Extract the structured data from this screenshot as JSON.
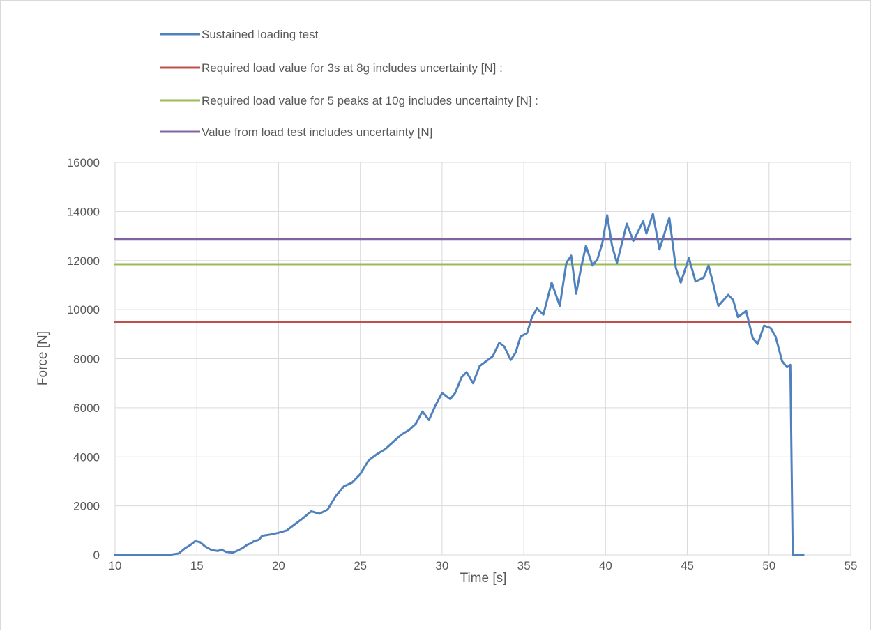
{
  "chart_data": {
    "type": "line",
    "title": "",
    "xlabel": "Time [s]",
    "ylabel": "Force [N]",
    "xlim": [
      10,
      55
    ],
    "ylim": [
      0,
      16000
    ],
    "x_ticks": [
      10,
      15,
      20,
      25,
      30,
      35,
      40,
      45,
      50,
      55
    ],
    "y_ticks": [
      0,
      2000,
      4000,
      6000,
      8000,
      10000,
      12000,
      14000,
      16000
    ],
    "grid": true,
    "legend_position": "top",
    "series": [
      {
        "name": "Sustained loading test",
        "color": "#4f81bd",
        "points": [
          [
            10,
            0
          ],
          [
            11,
            0
          ],
          [
            12,
            0
          ],
          [
            13.3,
            0
          ],
          [
            13.9,
            60
          ],
          [
            14.3,
            280
          ],
          [
            14.6,
            400
          ],
          [
            14.9,
            560
          ],
          [
            15.2,
            520
          ],
          [
            15.5,
            350
          ],
          [
            15.9,
            200
          ],
          [
            16.3,
            160
          ],
          [
            16.5,
            220
          ],
          [
            16.8,
            120
          ],
          [
            17.2,
            90
          ],
          [
            17.5,
            180
          ],
          [
            17.8,
            280
          ],
          [
            18.1,
            420
          ],
          [
            18.3,
            470
          ],
          [
            18.5,
            560
          ],
          [
            18.8,
            620
          ],
          [
            19,
            780
          ],
          [
            19.5,
            830
          ],
          [
            20,
            900
          ],
          [
            20.5,
            1000
          ],
          [
            21,
            1250
          ],
          [
            21.5,
            1500
          ],
          [
            22,
            1780
          ],
          [
            22.5,
            1680
          ],
          [
            23,
            1850
          ],
          [
            23.5,
            2400
          ],
          [
            24,
            2800
          ],
          [
            24.5,
            2950
          ],
          [
            25,
            3300
          ],
          [
            25.5,
            3850
          ],
          [
            26,
            4100
          ],
          [
            26.5,
            4300
          ],
          [
            27,
            4600
          ],
          [
            27.5,
            4900
          ],
          [
            28,
            5100
          ],
          [
            28.4,
            5350
          ],
          [
            28.8,
            5850
          ],
          [
            29.2,
            5500
          ],
          [
            29.6,
            6100
          ],
          [
            30,
            6600
          ],
          [
            30.5,
            6350
          ],
          [
            30.8,
            6600
          ],
          [
            31.2,
            7250
          ],
          [
            31.5,
            7450
          ],
          [
            31.9,
            7000
          ],
          [
            32.3,
            7700
          ],
          [
            32.7,
            7900
          ],
          [
            33.1,
            8100
          ],
          [
            33.5,
            8650
          ],
          [
            33.8,
            8500
          ],
          [
            34.2,
            7950
          ],
          [
            34.5,
            8250
          ],
          [
            34.8,
            8900
          ],
          [
            35.2,
            9050
          ],
          [
            35.5,
            9700
          ],
          [
            35.8,
            10050
          ],
          [
            36.2,
            9800
          ],
          [
            36.7,
            11100
          ],
          [
            37.2,
            10150
          ],
          [
            37.6,
            11900
          ],
          [
            37.9,
            12200
          ],
          [
            38.2,
            10650
          ],
          [
            38.5,
            11700
          ],
          [
            38.8,
            12600
          ],
          [
            39.2,
            11800
          ],
          [
            39.5,
            12050
          ],
          [
            39.8,
            12700
          ],
          [
            40.1,
            13850
          ],
          [
            40.4,
            12600
          ],
          [
            40.7,
            11900
          ],
          [
            41.3,
            13500
          ],
          [
            41.7,
            12800
          ],
          [
            42.3,
            13600
          ],
          [
            42.5,
            13100
          ],
          [
            42.9,
            13900
          ],
          [
            43.3,
            12450
          ],
          [
            43.9,
            13750
          ],
          [
            44.3,
            11700
          ],
          [
            44.6,
            11100
          ],
          [
            45.1,
            12100
          ],
          [
            45.5,
            11150
          ],
          [
            46,
            11300
          ],
          [
            46.3,
            11800
          ],
          [
            46.6,
            11000
          ],
          [
            46.9,
            10150
          ],
          [
            47.5,
            10600
          ],
          [
            47.8,
            10400
          ],
          [
            48.1,
            9700
          ],
          [
            48.6,
            9950
          ],
          [
            49,
            8850
          ],
          [
            49.3,
            8600
          ],
          [
            49.7,
            9350
          ],
          [
            50.1,
            9250
          ],
          [
            50.4,
            8900
          ],
          [
            50.8,
            7900
          ],
          [
            51.1,
            7650
          ],
          [
            51.3,
            7750
          ],
          [
            51.45,
            0
          ],
          [
            52.1,
            0
          ]
        ]
      },
      {
        "name": "Required load value for 3s at 8g includes uncertainty [N] :",
        "color": "#c0504d",
        "points": [
          [
            10,
            9480
          ],
          [
            55,
            9480
          ]
        ]
      },
      {
        "name": "Required load value for 5 peaks at 10g includes uncertainty [N] :",
        "color": "#9bbb59",
        "points": [
          [
            10,
            11850
          ],
          [
            55,
            11850
          ]
        ]
      },
      {
        "name": "Value from load test includes uncertainty [N]",
        "color": "#8064a2",
        "points": [
          [
            10,
            12880
          ],
          [
            55,
            12880
          ]
        ]
      }
    ]
  }
}
